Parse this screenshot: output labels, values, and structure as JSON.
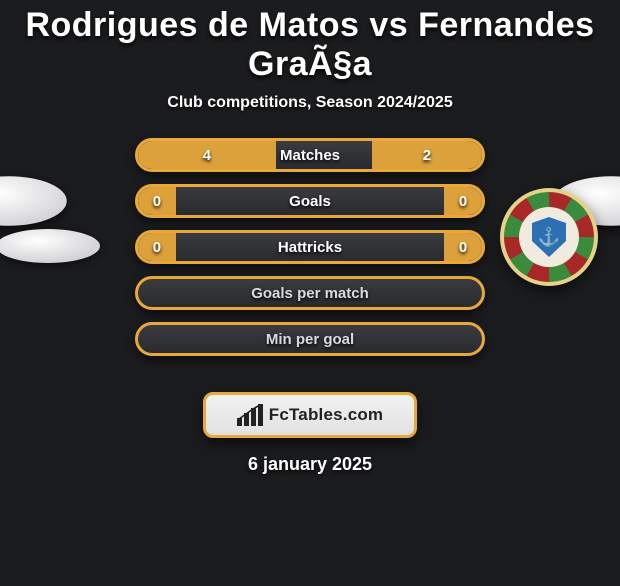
{
  "title": "Rodrigues de Matos vs Fernandes GraÃ§a",
  "subtitle": "Club competitions, Season 2024/2025",
  "date": "6 january 2025",
  "brand": {
    "text": "FcTables.com"
  },
  "colors": {
    "background": "#1b1c1e",
    "row_border": "#e8a93a",
    "row_bg_top": "#3a3b3f",
    "row_bg_bottom": "#2a2b2e",
    "bar_left": "#dca13a",
    "bar_right": "#dca13a",
    "text": "#ffffff",
    "brand_bg": "#ededed"
  },
  "rows": [
    {
      "type": "split",
      "label": "Matches",
      "left_val": "4",
      "right_val": "2",
      "left_pct": 40,
      "right_pct": 32
    },
    {
      "type": "split",
      "label": "Goals",
      "left_val": "0",
      "right_val": "0",
      "left_pct": 11,
      "right_pct": 11
    },
    {
      "type": "split",
      "label": "Hattricks",
      "left_val": "0",
      "right_val": "0",
      "left_pct": 11,
      "right_pct": 11
    },
    {
      "type": "full",
      "label": "Goals per match"
    },
    {
      "type": "full",
      "label": "Min per goal"
    }
  ]
}
